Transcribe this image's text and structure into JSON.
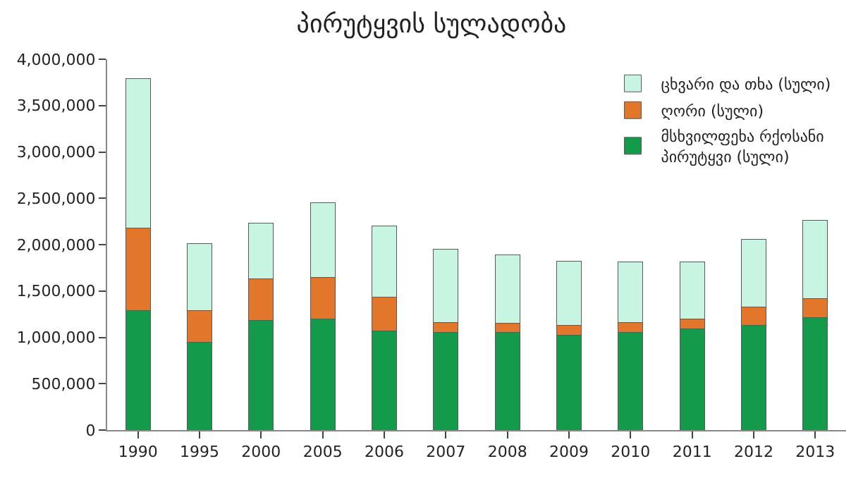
{
  "chart_data": {
    "type": "bar",
    "title": "პირუტყვის სულადობა",
    "stacked": true,
    "legend": "top right",
    "categories": [
      "1990",
      "1995",
      "2000",
      "2005",
      "2006",
      "2007",
      "2008",
      "2009",
      "2010",
      "2011",
      "2012",
      "2013"
    ],
    "ylim": [
      0,
      4000000
    ],
    "yticks": [
      {
        "value": 0,
        "label": "0"
      },
      {
        "value": 500000,
        "label": "500,000"
      },
      {
        "value": 1000000,
        "label": "1,000,000"
      },
      {
        "value": 1500000,
        "label": "1,500,000"
      },
      {
        "value": 2000000,
        "label": "2,000,000"
      },
      {
        "value": 2500000,
        "label": "2,500,000"
      },
      {
        "value": 3000000,
        "label": "3,000,000"
      },
      {
        "value": 3500000,
        "label": "3,500,000"
      },
      {
        "value": 4000000,
        "label": "4,000,000"
      }
    ],
    "series": [
      {
        "name": "მსხვილფეხა რქოსანი პირუტყვი (სული)",
        "color": "#139a4a",
        "values": [
          1290000,
          950000,
          1180000,
          1200000,
          1070000,
          1050000,
          1050000,
          1020000,
          1050000,
          1090000,
          1130000,
          1210000
        ]
      },
      {
        "name": "ღორი (სული)",
        "color": "#e2762a",
        "values": [
          890000,
          340000,
          450000,
          450000,
          360000,
          110000,
          100000,
          110000,
          110000,
          110000,
          200000,
          210000
        ]
      },
      {
        "name": "ცხვარი და თხა (სული)",
        "color": "#c8f4e2",
        "values": [
          1610000,
          720000,
          600000,
          800000,
          770000,
          790000,
          740000,
          690000,
          650000,
          610000,
          730000,
          840000
        ]
      }
    ]
  }
}
